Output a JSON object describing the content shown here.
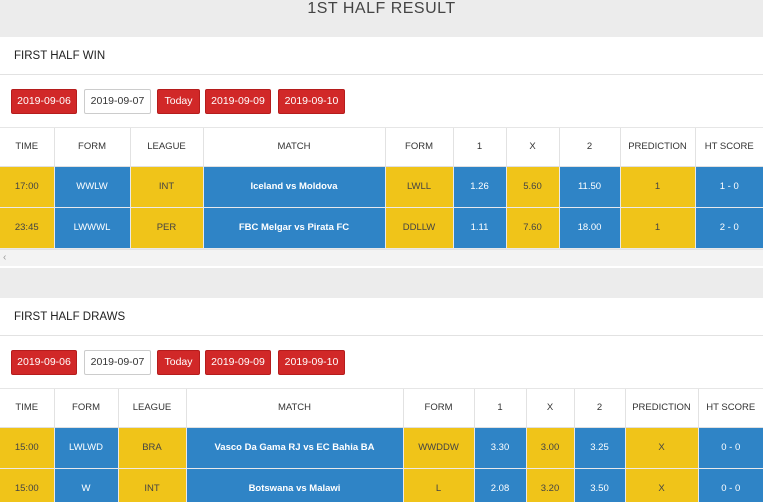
{
  "page_title": "1ST HALF RESULT",
  "colors": {
    "yellow": "#f0c419",
    "blue": "#2f84c6",
    "red": "#d12828"
  },
  "dates": [
    "2019-09-06",
    "2019-09-07",
    "Today",
    "2019-09-09",
    "2019-09-10"
  ],
  "selected_date": "2019-09-07",
  "scroll_left_icon": "chevron-left-icon",
  "headers": [
    "TIME",
    "FORM",
    "LEAGUE",
    "MATCH",
    "FORM",
    "1",
    "X",
    "2",
    "PREDICTION",
    "HT SCORE"
  ],
  "section_win": {
    "title": "FIRST HALF WIN",
    "rows": [
      {
        "time": "17:00",
        "form1": "WWLW",
        "league": "INT",
        "match": "Iceland vs Moldova",
        "form2": "LWLL",
        "o1": "1.26",
        "ox": "5.60",
        "o2": "11.50",
        "prediction": "1",
        "ht": "1 - 0"
      },
      {
        "time": "23:45",
        "form1": "LWWWL",
        "league": "PER",
        "match": "FBC Melgar vs Pirata FC",
        "form2": "DDLLW",
        "o1": "1.11",
        "ox": "7.60",
        "o2": "18.00",
        "prediction": "1",
        "ht": "2 - 0"
      }
    ]
  },
  "section_draws": {
    "title": "FIRST HALF DRAWS",
    "rows": [
      {
        "time": "15:00",
        "form1": "LWLWD",
        "league": "BRA",
        "match": "Vasco Da Gama RJ vs EC Bahia BA",
        "form2": "WWDDW",
        "o1": "3.30",
        "ox": "3.00",
        "o2": "3.25",
        "prediction": "X",
        "ht": "0 - 0"
      },
      {
        "time": "15:00",
        "form1": "W",
        "league": "INT",
        "match": "Botswana vs Malawi",
        "form2": "L",
        "o1": "2.08",
        "ox": "3.20",
        "o2": "3.50",
        "prediction": "X",
        "ht": "0 - 0"
      }
    ]
  }
}
